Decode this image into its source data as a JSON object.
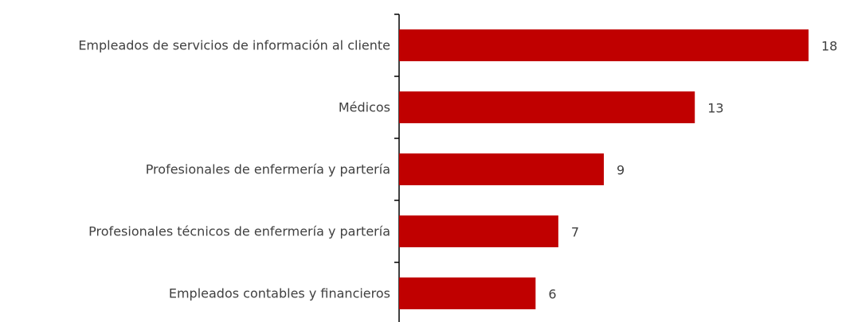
{
  "chart_data": {
    "type": "bar",
    "orientation": "horizontal",
    "categories": [
      "Empleados de servicios de información al cliente",
      "Médicos",
      "Profesionales de enfermería y partería",
      "Profesionales técnicos de enfermería y partería",
      "Empleados contables y financieros"
    ],
    "values": [
      18,
      13,
      9,
      7,
      6
    ],
    "color": "#c00000"
  }
}
